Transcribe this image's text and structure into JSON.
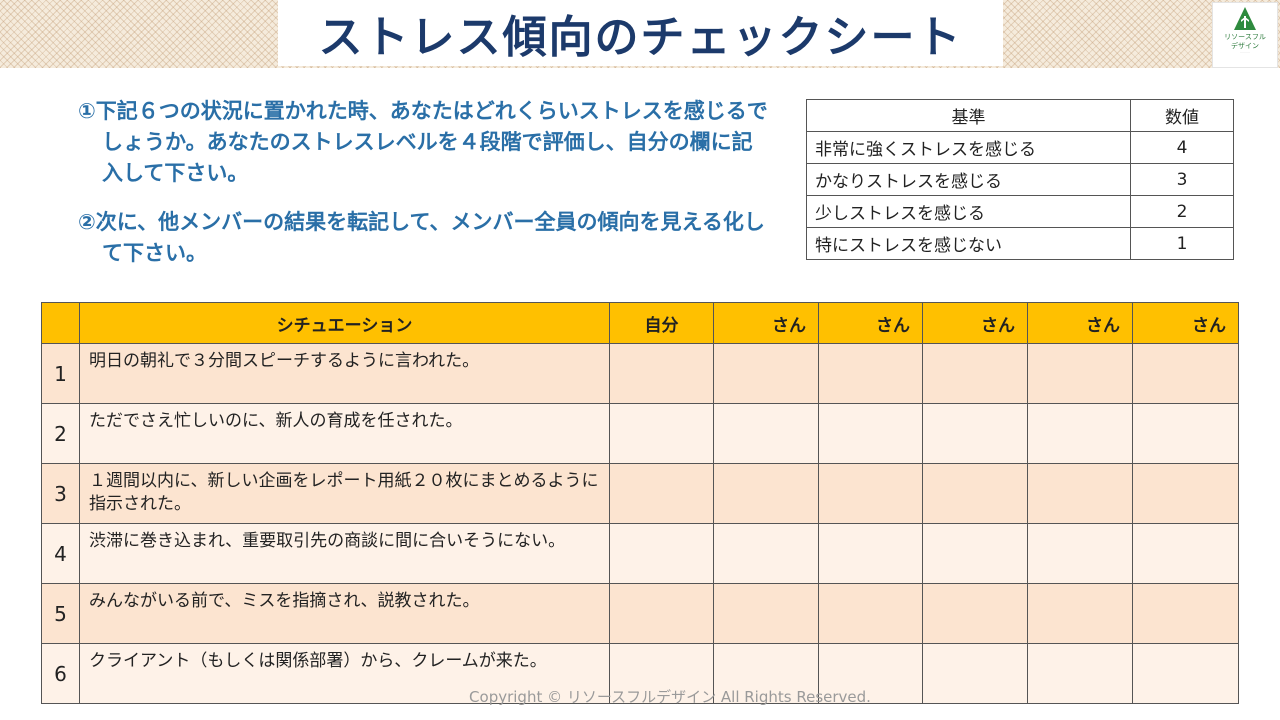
{
  "title": "ストレス傾向のチェックシート",
  "logo": {
    "name_line1": "リソースフル",
    "name_line2": "デザイン"
  },
  "instructions": [
    "①下記６つの状況に置かれた時、あなたはどれくらいストレスを感じるでしょうか。あなたのストレスレベルを４段階で評価し、自分の欄に記入して下さい。",
    "②次に、他メンバーの結果を転記して、メンバー全員の傾向を見える化して下さい。"
  ],
  "scale": {
    "header_criteria": "基準",
    "header_value": "数値",
    "rows": [
      {
        "criteria": "非常に強くストレスを感じる",
        "value": "4"
      },
      {
        "criteria": "かなりストレスを感じる",
        "value": "3"
      },
      {
        "criteria": "少しストレスを感じる",
        "value": "2"
      },
      {
        "criteria": "特にストレスを感じない",
        "value": "1"
      }
    ]
  },
  "table": {
    "header_situation": "シチュエーション",
    "header_self": "自分",
    "header_person": "さん",
    "rows": [
      {
        "num": "1",
        "text": "明日の朝礼で３分間スピーチするように言われた。"
      },
      {
        "num": "2",
        "text": "ただでさえ忙しいのに、新人の育成を任された。"
      },
      {
        "num": "3",
        "text": "１週間以内に、新しい企画をレポート用紙２０枚にまとめるように指示された。"
      },
      {
        "num": "4",
        "text": "渋滞に巻き込まれ、重要取引先の商談に間に合いそうにない。"
      },
      {
        "num": "5",
        "text": "みんながいる前で、ミスを指摘され、説教された。"
      },
      {
        "num": "6",
        "text": "クライアント（もしくは関係部署）から、クレームが来た。"
      }
    ]
  },
  "footer": "Copyright © リソースフルデザイン All Rights Reserved."
}
